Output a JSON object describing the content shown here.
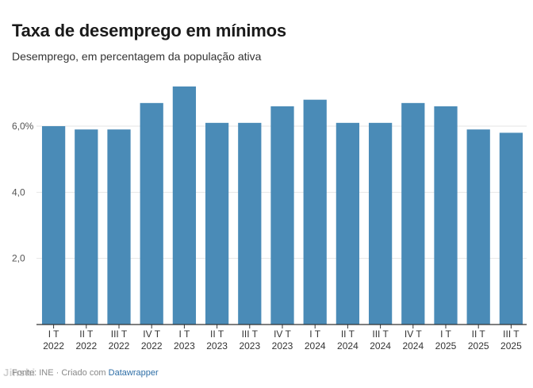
{
  "header": {
    "title": "Taxa de desemprego em mínimos",
    "subtitle": "Desemprego, em percentagem da população ativa"
  },
  "footer": {
    "source_label": "Fonte: INE · Criado com",
    "link_text": "Datawrapper"
  },
  "watermark": "Jinshi",
  "colors": {
    "bar": "#4a8bb7",
    "gridline": "#e6e6e6",
    "axis": "#333333",
    "link": "#2e6ea6"
  },
  "chart_data": {
    "type": "bar",
    "title": "Taxa de desemprego em mínimos",
    "subtitle": "Desemprego, em percentagem da população ativa",
    "xlabel": "",
    "ylabel": "",
    "ylim": [
      0,
      7.2
    ],
    "yticks": [
      {
        "value": 2,
        "label": "2,0"
      },
      {
        "value": 4,
        "label": "4,0"
      },
      {
        "value": 6,
        "label": "6,0%"
      }
    ],
    "grid": true,
    "categories": [
      {
        "quarter": "I T",
        "year": "2022"
      },
      {
        "quarter": "II T",
        "year": "2022"
      },
      {
        "quarter": "III T",
        "year": "2022"
      },
      {
        "quarter": "IV T",
        "year": "2022"
      },
      {
        "quarter": "I T",
        "year": "2023"
      },
      {
        "quarter": "II T",
        "year": "2023"
      },
      {
        "quarter": "III T",
        "year": "2023"
      },
      {
        "quarter": "IV T",
        "year": "2023"
      },
      {
        "quarter": "I T",
        "year": "2024"
      },
      {
        "quarter": "II T",
        "year": "2024"
      },
      {
        "quarter": "III T",
        "year": "2024"
      },
      {
        "quarter": "IV T",
        "year": "2024"
      },
      {
        "quarter": "I T",
        "year": "2025"
      },
      {
        "quarter": "II T",
        "year": "2025"
      },
      {
        "quarter": "III T",
        "year": "2025"
      }
    ],
    "values": [
      6.0,
      5.9,
      5.9,
      6.7,
      7.2,
      6.1,
      6.1,
      6.6,
      6.8,
      6.1,
      6.1,
      6.7,
      6.6,
      5.9,
      5.8
    ]
  }
}
